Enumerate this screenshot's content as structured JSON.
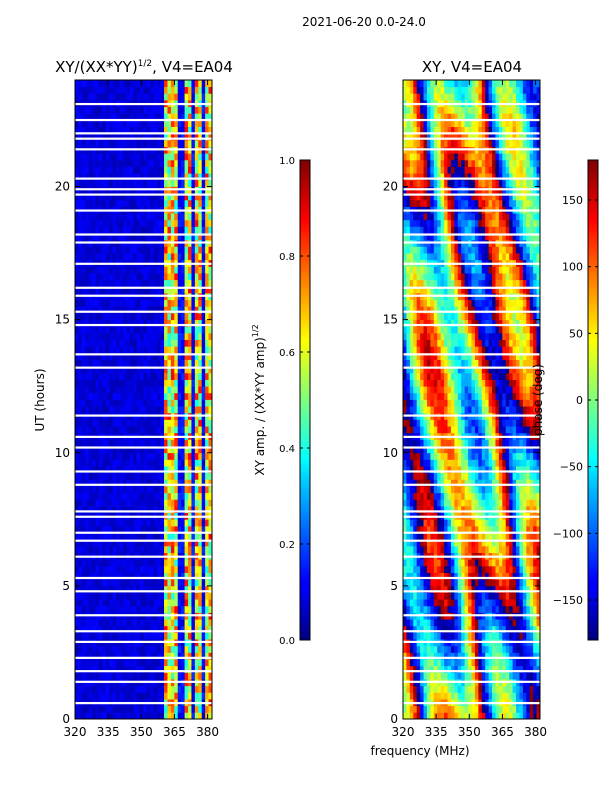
{
  "figure": {
    "suptitle": "2021-06-20 0.0-24.0",
    "shared_xlabel": "frequency (MHz)"
  },
  "colors": {
    "white_gap": "#ffffff",
    "axis": "#000000"
  },
  "chart_data": [
    {
      "type": "heatmap",
      "name": "amplitude",
      "title_main": "XY/(XX*YY)",
      "title_sup": "1/2",
      "title_rest": ", V4=EA04",
      "xlabel": "",
      "ylabel": "UT (hours)",
      "xlim": [
        320,
        382
      ],
      "ylim": [
        0,
        24
      ],
      "xticks": [
        "320",
        "335",
        "350",
        "365",
        "380"
      ],
      "xtick_values": [
        320,
        335,
        350,
        365,
        380
      ],
      "yticks": [
        "0",
        "5",
        "10",
        "15",
        "20"
      ],
      "ytick_values": [
        0,
        5,
        10,
        15,
        20
      ],
      "colorbar": {
        "label_main": "XY amp. / (XX*YY amp)",
        "label_sup": "1/2",
        "range": [
          0.0,
          1.0
        ],
        "colormap": "jet",
        "ticks": [
          "0.0",
          "0.2",
          "0.4",
          "0.6",
          "0.8",
          "1.0"
        ],
        "tick_values": [
          0.0,
          0.2,
          0.4,
          0.6,
          0.8,
          1.0
        ]
      },
      "structure": "low amplitude (~0.05) below 360 MHz; high amplitude (0.4-0.9) bands between 360 and 382 MHz with gaps near 368, 373 and 378 MHz",
      "white_gaps_hours": [
        0.6,
        1.4,
        1.8,
        2.3,
        2.9,
        3.3,
        3.9,
        4.8,
        5.3,
        6.1,
        6.7,
        7.0,
        7.6,
        7.8,
        8.8,
        9.3,
        10.2,
        10.6,
        11.4,
        13.2,
        13.7,
        14.8,
        15.3,
        15.9,
        16.2,
        17.1,
        17.9,
        18.2,
        19.1,
        19.7,
        19.9,
        20.3,
        21.4,
        21.8,
        22.0,
        22.5,
        23.1
      ]
    },
    {
      "type": "heatmap",
      "name": "phase",
      "title_main": "XY, V4=EA04",
      "xlabel": "frequency (MHz)",
      "ylabel": "",
      "xlim": [
        320,
        382
      ],
      "ylim": [
        0,
        24
      ],
      "xticks": [
        "320",
        "335",
        "350",
        "365",
        "380"
      ],
      "xtick_values": [
        320,
        335,
        350,
        365,
        380
      ],
      "yticks": [
        "0",
        "5",
        "10",
        "15",
        "20"
      ],
      "ytick_values": [
        0,
        5,
        10,
        15,
        20
      ],
      "colorbar": {
        "label_main": "phase (deg)",
        "range": [
          -180,
          180
        ],
        "colormap": "jet",
        "ticks": [
          "−150",
          "−100",
          "−50",
          "0",
          "50",
          "100",
          "150"
        ],
        "tick_values": [
          -150,
          -100,
          -50,
          0,
          50,
          100,
          150
        ]
      },
      "structure": "wrapped phase with diagonal stripes drifting in frequency over time, full -180 to 180 deg range",
      "white_gaps_hours": [
        0.6,
        1.4,
        1.8,
        2.3,
        2.9,
        3.3,
        3.9,
        4.8,
        5.3,
        6.1,
        6.7,
        7.0,
        7.6,
        7.8,
        8.8,
        9.3,
        10.2,
        10.6,
        11.4,
        13.2,
        13.7,
        14.8,
        15.3,
        15.9,
        16.2,
        17.1,
        17.9,
        18.2,
        19.1,
        19.7,
        19.9,
        20.3,
        21.4,
        21.8,
        22.0,
        22.5,
        23.1
      ]
    }
  ]
}
